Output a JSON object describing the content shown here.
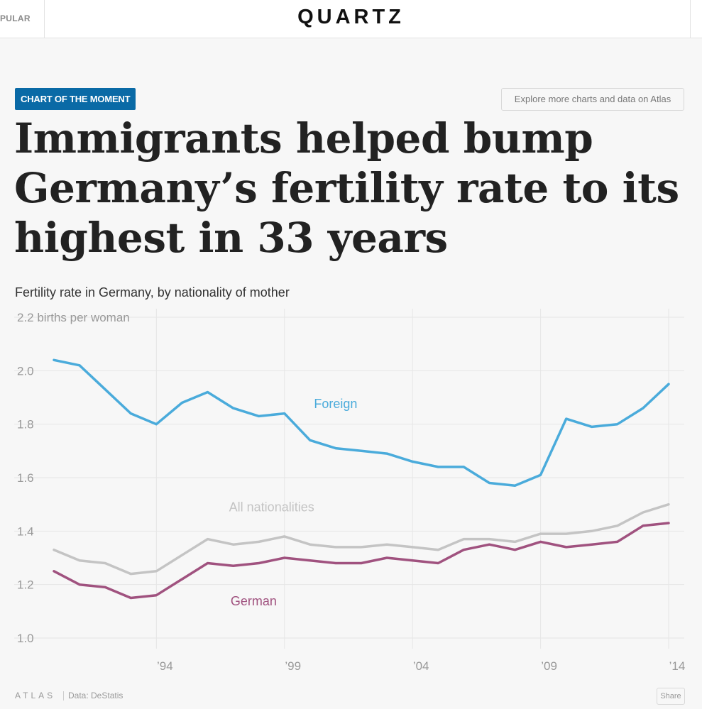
{
  "topbar": {
    "popular_label": "PULAR",
    "logo": "QUARTZ"
  },
  "badge": "CHART OF THE MOMENT",
  "atlas_button": "Explore more charts and data on Atlas",
  "headline": "Immigrants helped bump Germany’s fertility rate to its highest in 33 years",
  "footer": {
    "brand": "ATLAS",
    "source": "Data: DeStatis",
    "share": "Share"
  },
  "colors": {
    "foreign": "#4aabdb",
    "all": "#c4c4c4",
    "german": "#a0527f",
    "grid": "#e6e6e6",
    "axis_text": "#999999"
  },
  "chart_data": {
    "type": "line",
    "title": "Fertility rate in Germany, by nationality of mother",
    "ylabel": "2.2 births per woman",
    "ylim": [
      1.0,
      2.2
    ],
    "yticks": [
      1.0,
      1.2,
      1.4,
      1.6,
      1.8,
      2.0,
      2.2
    ],
    "ytick_labels": [
      "1.0",
      "1.2",
      "1.4",
      "1.6",
      "1.8",
      "2.0",
      "2.2 births per woman"
    ],
    "xlim": [
      1990,
      2014
    ],
    "xticks": [
      1994,
      1999,
      2004,
      2009,
      2014
    ],
    "xtick_labels": [
      "’94",
      "’99",
      "’04",
      "’09",
      "’14"
    ],
    "x": [
      1990,
      1991,
      1992,
      1993,
      1994,
      1995,
      1996,
      1997,
      1998,
      1999,
      2000,
      2001,
      2002,
      2003,
      2004,
      2005,
      2006,
      2007,
      2008,
      2009,
      2010,
      2011,
      2012,
      2013,
      2014
    ],
    "series": [
      {
        "name": "Foreign",
        "values": [
          2.04,
          2.02,
          1.93,
          1.84,
          1.8,
          1.88,
          1.92,
          1.86,
          1.83,
          1.84,
          1.74,
          1.71,
          1.7,
          1.69,
          1.66,
          1.64,
          1.64,
          1.58,
          1.57,
          1.61,
          1.82,
          1.79,
          1.8,
          1.86,
          1.95
        ],
        "label_x": 2001,
        "label_y": 1.86
      },
      {
        "name": "All nationalities",
        "values": [
          1.33,
          1.29,
          1.28,
          1.24,
          1.25,
          1.31,
          1.37,
          1.35,
          1.36,
          1.38,
          1.35,
          1.34,
          1.34,
          1.35,
          1.34,
          1.33,
          1.37,
          1.37,
          1.36,
          1.39,
          1.39,
          1.4,
          1.42,
          1.47,
          1.5
        ],
        "label_x": 1998.5,
        "label_y": 1.474
      },
      {
        "name": "German",
        "values": [
          1.25,
          1.2,
          1.19,
          1.15,
          1.16,
          1.22,
          1.28,
          1.27,
          1.28,
          1.3,
          1.29,
          1.28,
          1.28,
          1.3,
          1.29,
          1.28,
          1.33,
          1.35,
          1.33,
          1.36,
          1.34,
          1.35,
          1.36,
          1.42,
          1.43
        ],
        "label_x": 1997.8,
        "label_y": 1.122
      }
    ]
  }
}
